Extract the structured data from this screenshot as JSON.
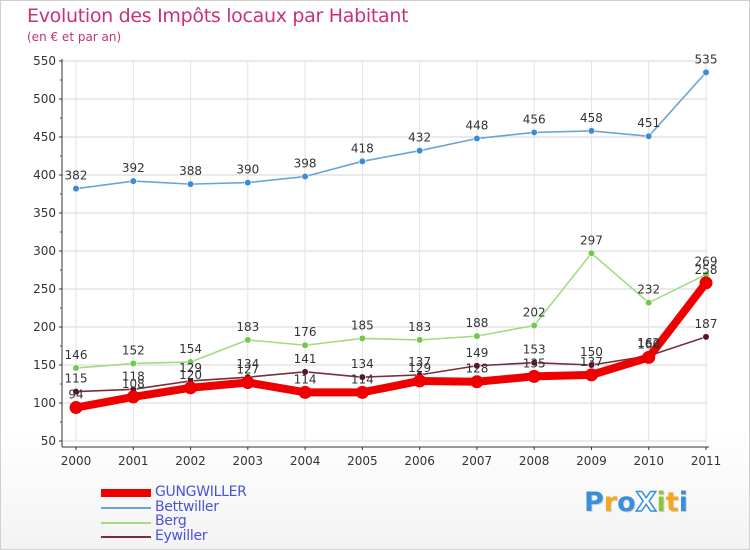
{
  "title": "Evolution des Impôts locaux par Habitant",
  "subtitle": "(en € et par an)",
  "logo": {
    "text": "ProXiti",
    "letters": [
      "P",
      "r",
      "o",
      "X",
      "i",
      "t",
      "i"
    ],
    "colors": [
      "#3a8fd6",
      "#f5a623",
      "#3a8fd6",
      "#ffffff",
      "#8cc63f",
      "#f5a623",
      "#3a8fd6"
    ]
  },
  "chart_data": {
    "type": "line",
    "title": "Evolution des Impôts locaux par Habitant",
    "subtitle": "(en € et par an)",
    "xlabel": "",
    "ylabel": "",
    "x": [
      "2000",
      "2001",
      "2002",
      "2003",
      "2004",
      "2005",
      "2006",
      "2007",
      "2008",
      "2009",
      "2010",
      "2011"
    ],
    "yticks": [
      "50",
      "100",
      "150",
      "200",
      "250",
      "300",
      "350",
      "400",
      "450",
      "500",
      "550"
    ],
    "ylim": [
      50,
      550
    ],
    "grid": true,
    "legend_position": "bottom-left",
    "series": [
      {
        "name": "GUNGWILLER",
        "color": "#ee0000",
        "style": "thick",
        "values": [
          94,
          108,
          120,
          127,
          114,
          114,
          129,
          128,
          135,
          137,
          160,
          258
        ],
        "labels": [
          "94",
          "108",
          "120",
          "127",
          "114",
          "114",
          "129",
          "128",
          "135",
          "137",
          "160",
          "258"
        ]
      },
      {
        "name": "Bettwiller",
        "color": "#6aa3d5",
        "marker": "#3c8cd4",
        "style": "thin",
        "values": [
          382,
          392,
          388,
          390,
          398,
          418,
          432,
          448,
          456,
          458,
          451,
          535
        ],
        "labels": [
          "382",
          "392",
          "388",
          "390",
          "398",
          "418",
          "432",
          "448",
          "456",
          "458",
          "451",
          "535"
        ]
      },
      {
        "name": "Berg",
        "color": "#a3dc80",
        "marker": "#72c84a",
        "style": "thin",
        "values": [
          146,
          152,
          154,
          183,
          176,
          185,
          183,
          188,
          202,
          297,
          232,
          269
        ],
        "labels": [
          "146",
          "152",
          "154",
          "183",
          "176",
          "185",
          "183",
          "188",
          "202",
          "297",
          "232",
          "269"
        ]
      },
      {
        "name": "Eywiller",
        "color": "#7a2e3c",
        "marker": "#5a1320",
        "style": "thin",
        "values": [
          115,
          118,
          129,
          134,
          141,
          134,
          137,
          149,
          153,
          150,
          162,
          187
        ],
        "labels": [
          "115",
          "118",
          "129",
          "134",
          "141",
          "134",
          "137",
          "149",
          "153",
          "150",
          "162",
          "187"
        ]
      }
    ]
  }
}
